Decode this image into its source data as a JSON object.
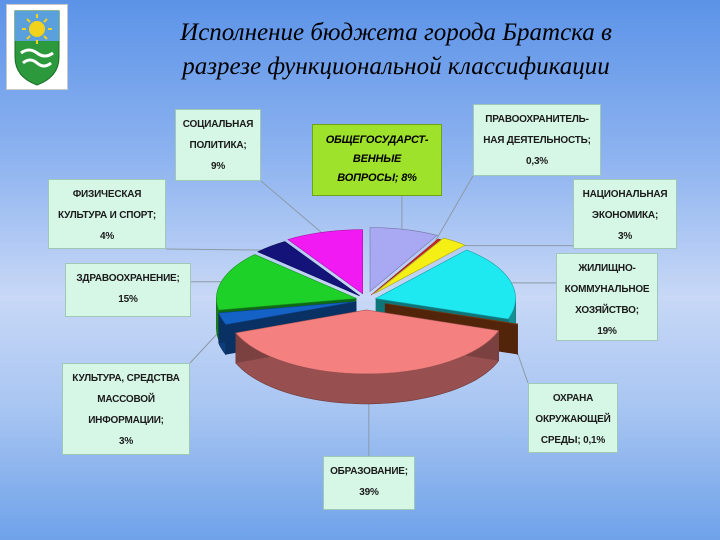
{
  "title": {
    "line1": "Исполнение бюджета города Братска в",
    "line2": "разрезе функциональной классификации"
  },
  "chart_data": {
    "type": "pie",
    "style": "3d-exploded",
    "series": [
      {
        "key": "gov",
        "lines": [
          "ОБЩЕГОСУДАРСТ-",
          "ВЕННЫЕ",
          "ВОПРОСЫ; 8%"
        ],
        "value": 8,
        "color": "#a9a9f3",
        "highlight": true
      },
      {
        "key": "law",
        "lines": [
          "ПРАВООХРАНИТЕЛЬ-",
          "НАЯ ДЕЯТЕЛЬНОСТЬ;",
          "0,3%"
        ],
        "value": 0.3,
        "color": "#e2261c"
      },
      {
        "key": "econ",
        "lines": [
          "НАЦИОНАЛЬНАЯ",
          "ЭКОНОМИКА;",
          "3%"
        ],
        "value": 3,
        "color": "#f5ef16"
      },
      {
        "key": "housing",
        "lines": [
          "ЖИЛИЩНО-",
          "КОММУНАЛЬНОЕ",
          "ХОЗЯЙСТВО;",
          "19%"
        ],
        "value": 19,
        "color": "#1ee8f0"
      },
      {
        "key": "env",
        "lines": [
          "ОХРАНА",
          "ОКРУЖАЮЩЕЙ",
          "СРЕДЫ; 0,1%"
        ],
        "value": 0.1,
        "color": "#a34a14"
      },
      {
        "key": "edu",
        "lines": [
          "ОБРАЗОВАНИЕ;",
          "39%"
        ],
        "value": 39,
        "color": "#f58080"
      },
      {
        "key": "culture",
        "lines": [
          "КУЛЬТУРА, СРЕДСТВА",
          "МАССОВОЙ",
          "ИНФОРМАЦИИ;",
          "3%"
        ],
        "value": 3,
        "color": "#1462c6"
      },
      {
        "key": "health",
        "lines": [
          "ЗДРАВООХРАНЕНИЕ;",
          "15%"
        ],
        "value": 15,
        "color": "#1ed128"
      },
      {
        "key": "sport",
        "lines": [
          "ФИЗИЧЕСКАЯ",
          "КУЛЬТУРА И СПОРТ;",
          "4%"
        ],
        "value": 4,
        "color": "#13137a"
      },
      {
        "key": "social",
        "lines": [
          "СОЦИАЛЬНАЯ",
          "ПОЛИТИКА;",
          "9%"
        ],
        "value": 9,
        "color": "#f21af2"
      }
    ]
  }
}
